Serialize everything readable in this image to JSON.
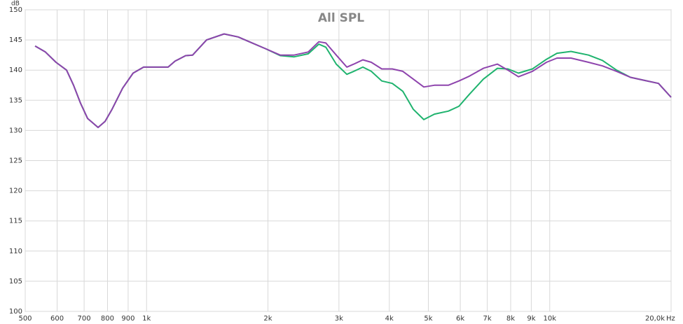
{
  "chart_data": {
    "type": "line",
    "title": "All SPL",
    "ylabel": "dB",
    "xlabel": "Hz",
    "log_x": true,
    "grid": true,
    "xlim": [
      500,
      20000
    ],
    "ylim": [
      100,
      150
    ],
    "xticks": [
      500,
      {
        "value": 600,
        "label": "600"
      },
      {
        "value": 700,
        "label": "700"
      },
      {
        "value": 800,
        "label": "800"
      },
      {
        "value": 900,
        "label": "900"
      },
      {
        "value": 1000,
        "label": "1k"
      },
      {
        "value": 2000,
        "label": "2k"
      },
      {
        "value": 3000,
        "label": "3k"
      },
      {
        "value": 4000,
        "label": "4k"
      },
      {
        "value": 5000,
        "label": "5k"
      },
      {
        "value": 6000,
        "label": "6k"
      },
      {
        "value": 7000,
        "label": "7k"
      },
      {
        "value": 8000,
        "label": "8k"
      },
      {
        "value": 9000,
        "label": "9k"
      },
      {
        "value": 10000,
        "label": "10k"
      },
      {
        "value": 20000,
        "label": "20,0k"
      }
    ],
    "yticks": [
      100,
      105,
      110,
      115,
      120,
      125,
      130,
      135,
      140,
      145,
      150
    ],
    "x": [
      529,
      561,
      596,
      633,
      659,
      686,
      714,
      758,
      789,
      821,
      872,
      926,
      983,
      1044,
      1131,
      1177,
      1250,
      1301,
      1409,
      1557,
      1687,
      1828,
      1980,
      2145,
      2324,
      2517,
      2674,
      2783,
      2954,
      3138,
      3266,
      3440,
      3609,
      3832,
      4069,
      4321,
      4588,
      4871,
      5174,
      5604,
      5952,
      6320,
      6846,
      7418,
      7876,
      8363,
      9059,
      9815,
      10422,
      11290,
      12478,
      13517,
      14642,
      15860,
      17181,
      18611,
      20000
    ],
    "series": [
      {
        "color": "#1fb36e",
        "values": [
          144.0,
          143.0,
          141.3,
          140.0,
          137.5,
          134.5,
          132.0,
          130.5,
          131.5,
          133.5,
          137.0,
          139.5,
          140.5,
          140.5,
          140.5,
          141.5,
          142.4,
          142.5,
          145.0,
          146.0,
          145.5,
          144.5,
          143.5,
          142.4,
          142.2,
          142.7,
          144.3,
          143.8,
          141.0,
          139.3,
          139.8,
          140.5,
          139.8,
          138.2,
          137.8,
          136.5,
          133.5,
          131.8,
          132.7,
          133.2,
          134.0,
          136.0,
          138.5,
          140.3,
          140.2,
          139.5,
          140.2,
          141.8,
          142.8,
          143.1,
          142.5,
          141.6,
          140.0,
          138.8,
          138.3,
          137.8,
          135.5
        ]
      },
      {
        "color": "#8e44ad",
        "values": [
          144.0,
          143.0,
          141.3,
          140.0,
          137.5,
          134.5,
          132.0,
          130.5,
          131.5,
          133.5,
          137.0,
          139.5,
          140.5,
          140.5,
          140.5,
          141.5,
          142.4,
          142.5,
          145.0,
          146.0,
          145.5,
          144.5,
          143.5,
          142.5,
          142.5,
          143.0,
          144.7,
          144.5,
          142.5,
          140.5,
          141.0,
          141.7,
          141.3,
          140.2,
          140.2,
          139.8,
          138.5,
          137.2,
          137.5,
          137.5,
          138.2,
          139.0,
          140.3,
          141.0,
          140.0,
          138.9,
          139.8,
          141.3,
          142.0,
          142.0,
          141.3,
          140.7,
          139.8,
          138.8,
          138.3,
          137.8,
          135.5
        ]
      }
    ]
  }
}
